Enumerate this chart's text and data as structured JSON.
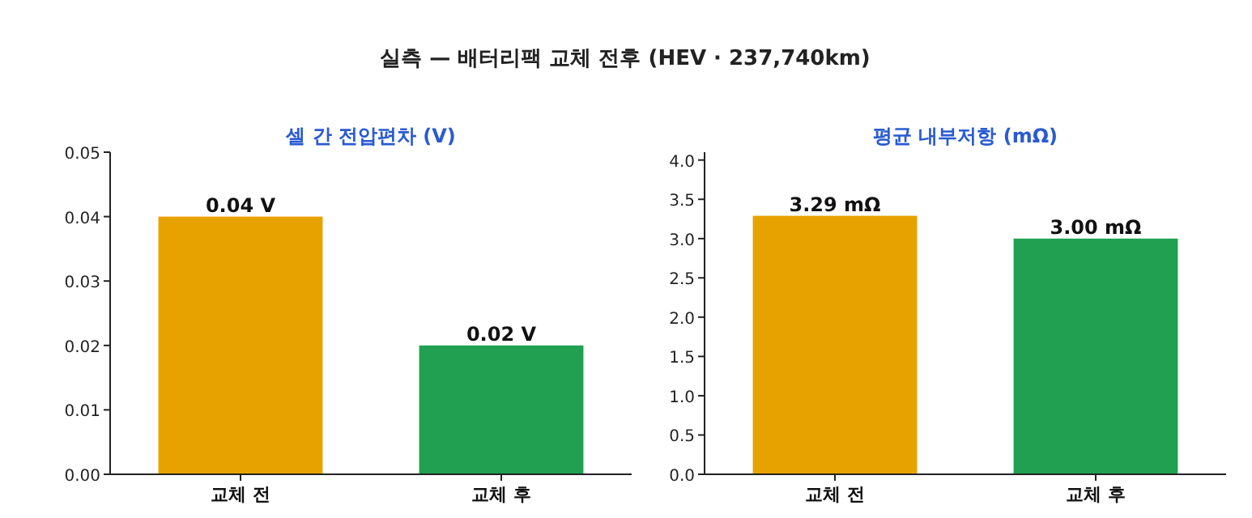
{
  "chart_data": [
    {
      "type": "bar",
      "title": "셀 간 전압편차 (V)",
      "categories": [
        "교체 전",
        "교체 후"
      ],
      "values": [
        0.04,
        0.02
      ],
      "colors": [
        "#e8a200",
        "#20a050"
      ],
      "value_labels": [
        "0.04 V",
        "0.02 V"
      ],
      "ylim": [
        0,
        0.05
      ],
      "yticks": [
        {
          "value": 0,
          "label": "0.00"
        },
        {
          "value": 0.01,
          "label": "0.01"
        },
        {
          "value": 0.02,
          "label": "0.02"
        },
        {
          "value": 0.03,
          "label": "0.03"
        },
        {
          "value": 0.04,
          "label": "0.04"
        },
        {
          "value": 0.05,
          "label": "0.05"
        }
      ],
      "grid": false,
      "annotations": [
        "실측 — 배터리팩 교체 전후 (HEV · 237,740km)"
      ]
    },
    {
      "type": "bar",
      "title": "평균 내부저항 (mΩ)",
      "categories": [
        "교체 전",
        "교체 후"
      ],
      "values": [
        3.29,
        3.0
      ],
      "colors": [
        "#e8a200",
        "#20a050"
      ],
      "value_labels": [
        "3.29 mΩ",
        "3.00 mΩ"
      ],
      "ylim": [
        0,
        4.1
      ],
      "yticks": [
        {
          "value": 0,
          "label": "0.0"
        },
        {
          "value": 0.5,
          "label": "0.5"
        },
        {
          "value": 1,
          "label": "1.0"
        },
        {
          "value": 1.5,
          "label": "1.5"
        },
        {
          "value": 2,
          "label": "2.0"
        },
        {
          "value": 2.5,
          "label": "2.5"
        },
        {
          "value": 3,
          "label": "3.0"
        },
        {
          "value": 3.5,
          "label": "3.5"
        },
        {
          "value": 4,
          "label": "4.0"
        }
      ],
      "grid": false
    }
  ]
}
